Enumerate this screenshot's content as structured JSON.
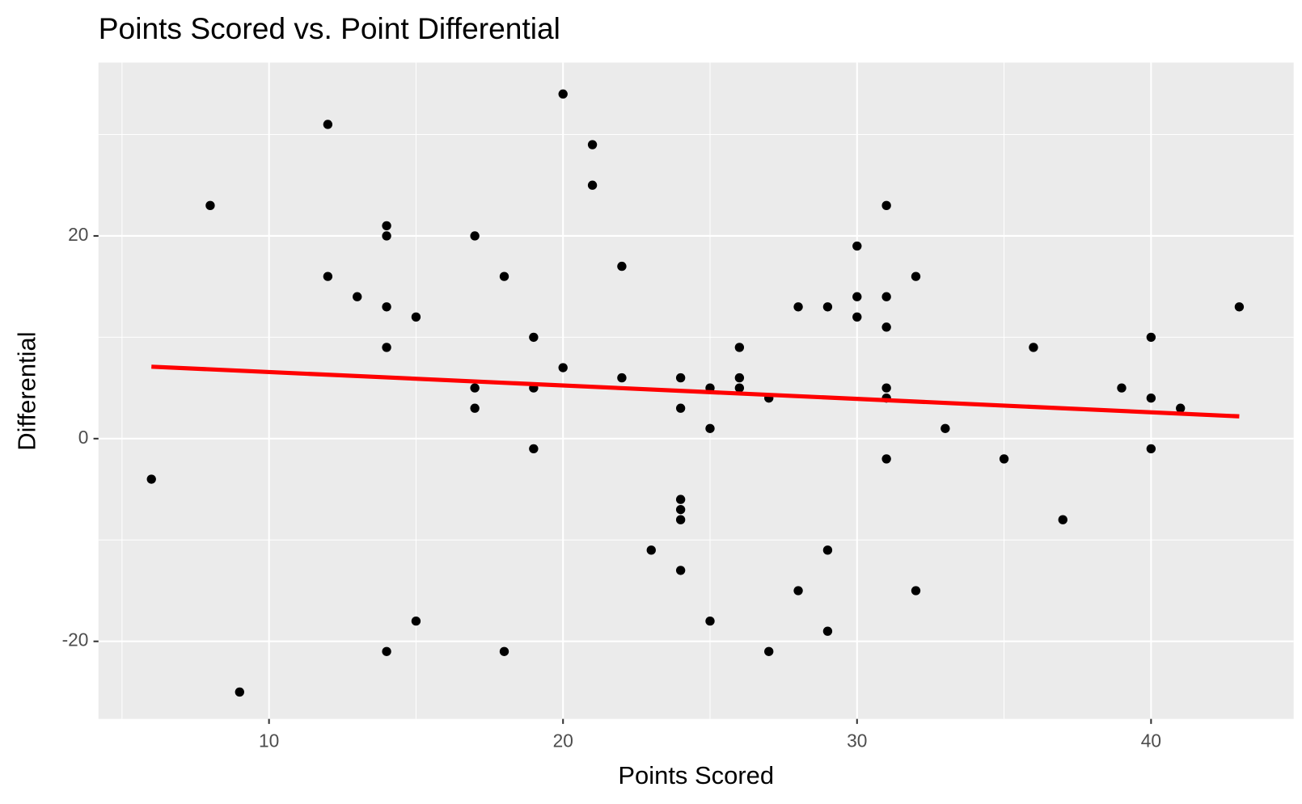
{
  "chart_data": {
    "type": "scatter",
    "title": "Points Scored vs. Point Differential",
    "xlabel": "Points Scored",
    "ylabel": "Differential",
    "series": [
      {
        "color": "#000000",
        "x": [
          6,
          8,
          9,
          12,
          12,
          13,
          14,
          14,
          14,
          14,
          14,
          15,
          15,
          17,
          17,
          17,
          18,
          18,
          19,
          19,
          19,
          20,
          20,
          21,
          21,
          22,
          22,
          23,
          24,
          24,
          24,
          24,
          24,
          24,
          25,
          25,
          25,
          26,
          26,
          26,
          27,
          27,
          28,
          28,
          29,
          29,
          29,
          30,
          30,
          30,
          31,
          31,
          31,
          31,
          31,
          31,
          32,
          32,
          33,
          35,
          36,
          37,
          39,
          40,
          40,
          40,
          41,
          43
        ],
        "values": [
          -4,
          23,
          -25,
          31,
          16,
          14,
          21,
          20,
          13,
          9,
          -21,
          12,
          -18,
          20,
          5,
          3,
          16,
          -21,
          10,
          5,
          -1,
          34,
          7,
          29,
          25,
          17,
          6,
          -11,
          6,
          3,
          -6,
          -7,
          -8,
          -13,
          5,
          1,
          -18,
          9,
          6,
          5,
          4,
          -21,
          13,
          -15,
          13,
          -11,
          -19,
          19,
          14,
          12,
          23,
          14,
          11,
          5,
          4,
          -2,
          16,
          -15,
          1,
          -2,
          9,
          -8,
          5,
          10,
          4,
          -1,
          3,
          13
        ]
      }
    ],
    "trend": {
      "color": "#ff0000",
      "x": [
        6,
        43
      ],
      "values": [
        7.1,
        2.2
      ]
    },
    "xlim": [
      4.2,
      44.85
    ],
    "ylim": [
      -27.65,
      37.1
    ],
    "xticks": [
      10,
      20,
      30,
      40
    ],
    "yticks": [
      -20,
      0,
      20
    ],
    "x_minor_ticks": [
      5,
      15,
      25,
      35
    ],
    "y_minor_ticks": [
      -10,
      10,
      30
    ],
    "grid": true,
    "background": "#ebebeb"
  }
}
